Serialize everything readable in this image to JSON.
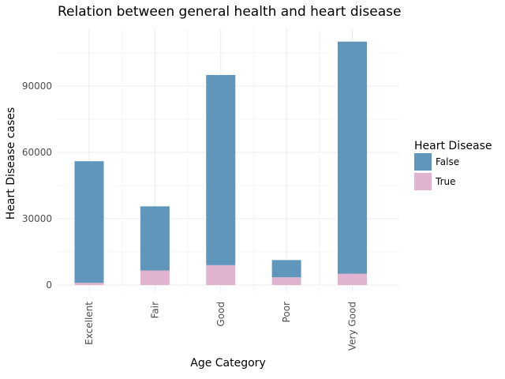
{
  "chart_data": {
    "type": "bar",
    "stacked": true,
    "title": "Relation between general health and heart disease",
    "xlabel": "Age Category",
    "ylabel": "Heart Disease cases",
    "categories": [
      "Excellent",
      "Fair",
      "Good",
      "Poor",
      "Very Good"
    ],
    "series": [
      {
        "name": "False",
        "color": "#6096bc",
        "values": [
          55000,
          29000,
          86000,
          7800,
          105000
        ]
      },
      {
        "name": "True",
        "color": "#e0b3cf",
        "values": [
          1000,
          6600,
          9000,
          3500,
          5100
        ]
      }
    ],
    "ylim": [
      0,
      115000
    ],
    "yticks": [
      0,
      30000,
      60000,
      90000
    ],
    "yminor": [
      15000,
      45000,
      75000,
      105000
    ],
    "legend": {
      "title": "Heart Disease",
      "position": "right",
      "entries": [
        "False",
        "True"
      ]
    },
    "grid": true
  }
}
